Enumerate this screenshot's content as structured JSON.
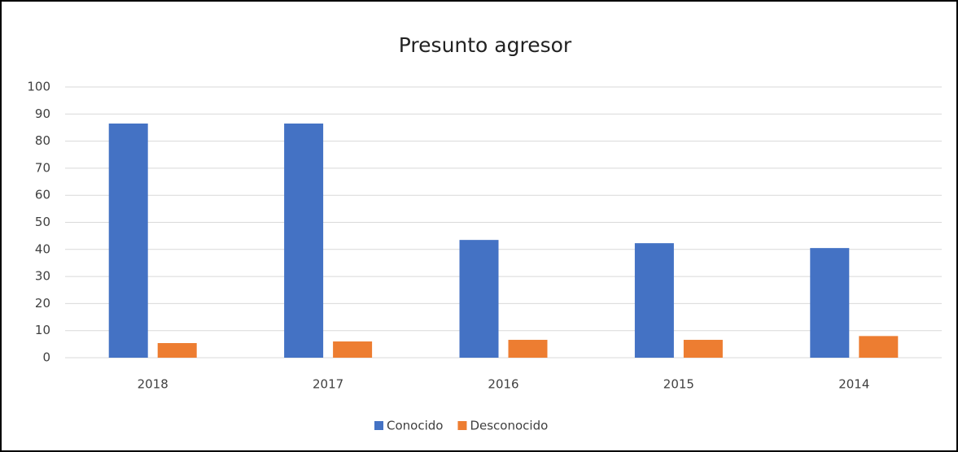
{
  "chart_data": {
    "type": "bar",
    "title": "Presunto agresor",
    "categories": [
      "2018",
      "2017",
      "2016",
      "2015",
      "2014"
    ],
    "series": [
      {
        "name": "Conocido",
        "color": "#4472c4",
        "values": [
          86.5,
          86.5,
          43.5,
          42.3,
          40.5
        ]
      },
      {
        "name": "Desconocido",
        "color": "#ed7d31",
        "values": [
          5.4,
          6,
          6.6,
          6.6,
          8
        ]
      }
    ],
    "ylim": [
      0,
      100
    ],
    "yticks": [
      0,
      10,
      20,
      30,
      40,
      50,
      60,
      70,
      80,
      90,
      100
    ],
    "grid": true,
    "legend": "bottom"
  }
}
